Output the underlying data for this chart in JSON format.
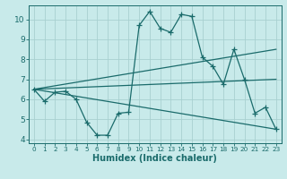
{
  "xlabel": "Humidex (Indice chaleur)",
  "bg_color": "#c8eaea",
  "line_color": "#1a6b6b",
  "grid_color": "#a8d0d0",
  "xlim": [
    -0.5,
    23.5
  ],
  "ylim": [
    3.8,
    10.7
  ],
  "xticks": [
    0,
    1,
    2,
    3,
    4,
    5,
    6,
    7,
    8,
    9,
    10,
    11,
    12,
    13,
    14,
    15,
    16,
    17,
    18,
    19,
    20,
    21,
    22,
    23
  ],
  "yticks": [
    4,
    5,
    6,
    7,
    8,
    9,
    10
  ],
  "line1_x": [
    0,
    1,
    2,
    3,
    4,
    5,
    6,
    7,
    8,
    9,
    10,
    11,
    12,
    13,
    14,
    15,
    16,
    17,
    18,
    19,
    20,
    21,
    22,
    23
  ],
  "line1_y": [
    6.5,
    5.9,
    6.35,
    6.4,
    6.0,
    4.85,
    4.2,
    4.2,
    5.3,
    5.35,
    9.7,
    10.4,
    9.55,
    9.35,
    10.25,
    10.15,
    8.1,
    7.65,
    6.75,
    8.5,
    7.0,
    5.3,
    5.6,
    4.5
  ],
  "line2_x": [
    0,
    23
  ],
  "line2_y": [
    6.5,
    8.5
  ],
  "line3_x": [
    0,
    23
  ],
  "line3_y": [
    6.5,
    7.0
  ],
  "line4_x": [
    0,
    23
  ],
  "line4_y": [
    6.5,
    4.5
  ],
  "marker_x": [
    0,
    1,
    2,
    3,
    4,
    5,
    6,
    7,
    8,
    9,
    10,
    11,
    12,
    13,
    14,
    15,
    16,
    17,
    18,
    19,
    20,
    21,
    22,
    23
  ],
  "marker_y": [
    6.5,
    5.9,
    6.35,
    6.4,
    6.0,
    4.85,
    4.2,
    4.2,
    5.3,
    5.35,
    9.7,
    10.4,
    9.55,
    9.35,
    10.25,
    10.15,
    8.1,
    7.65,
    6.75,
    8.5,
    7.0,
    5.3,
    5.6,
    4.5
  ]
}
